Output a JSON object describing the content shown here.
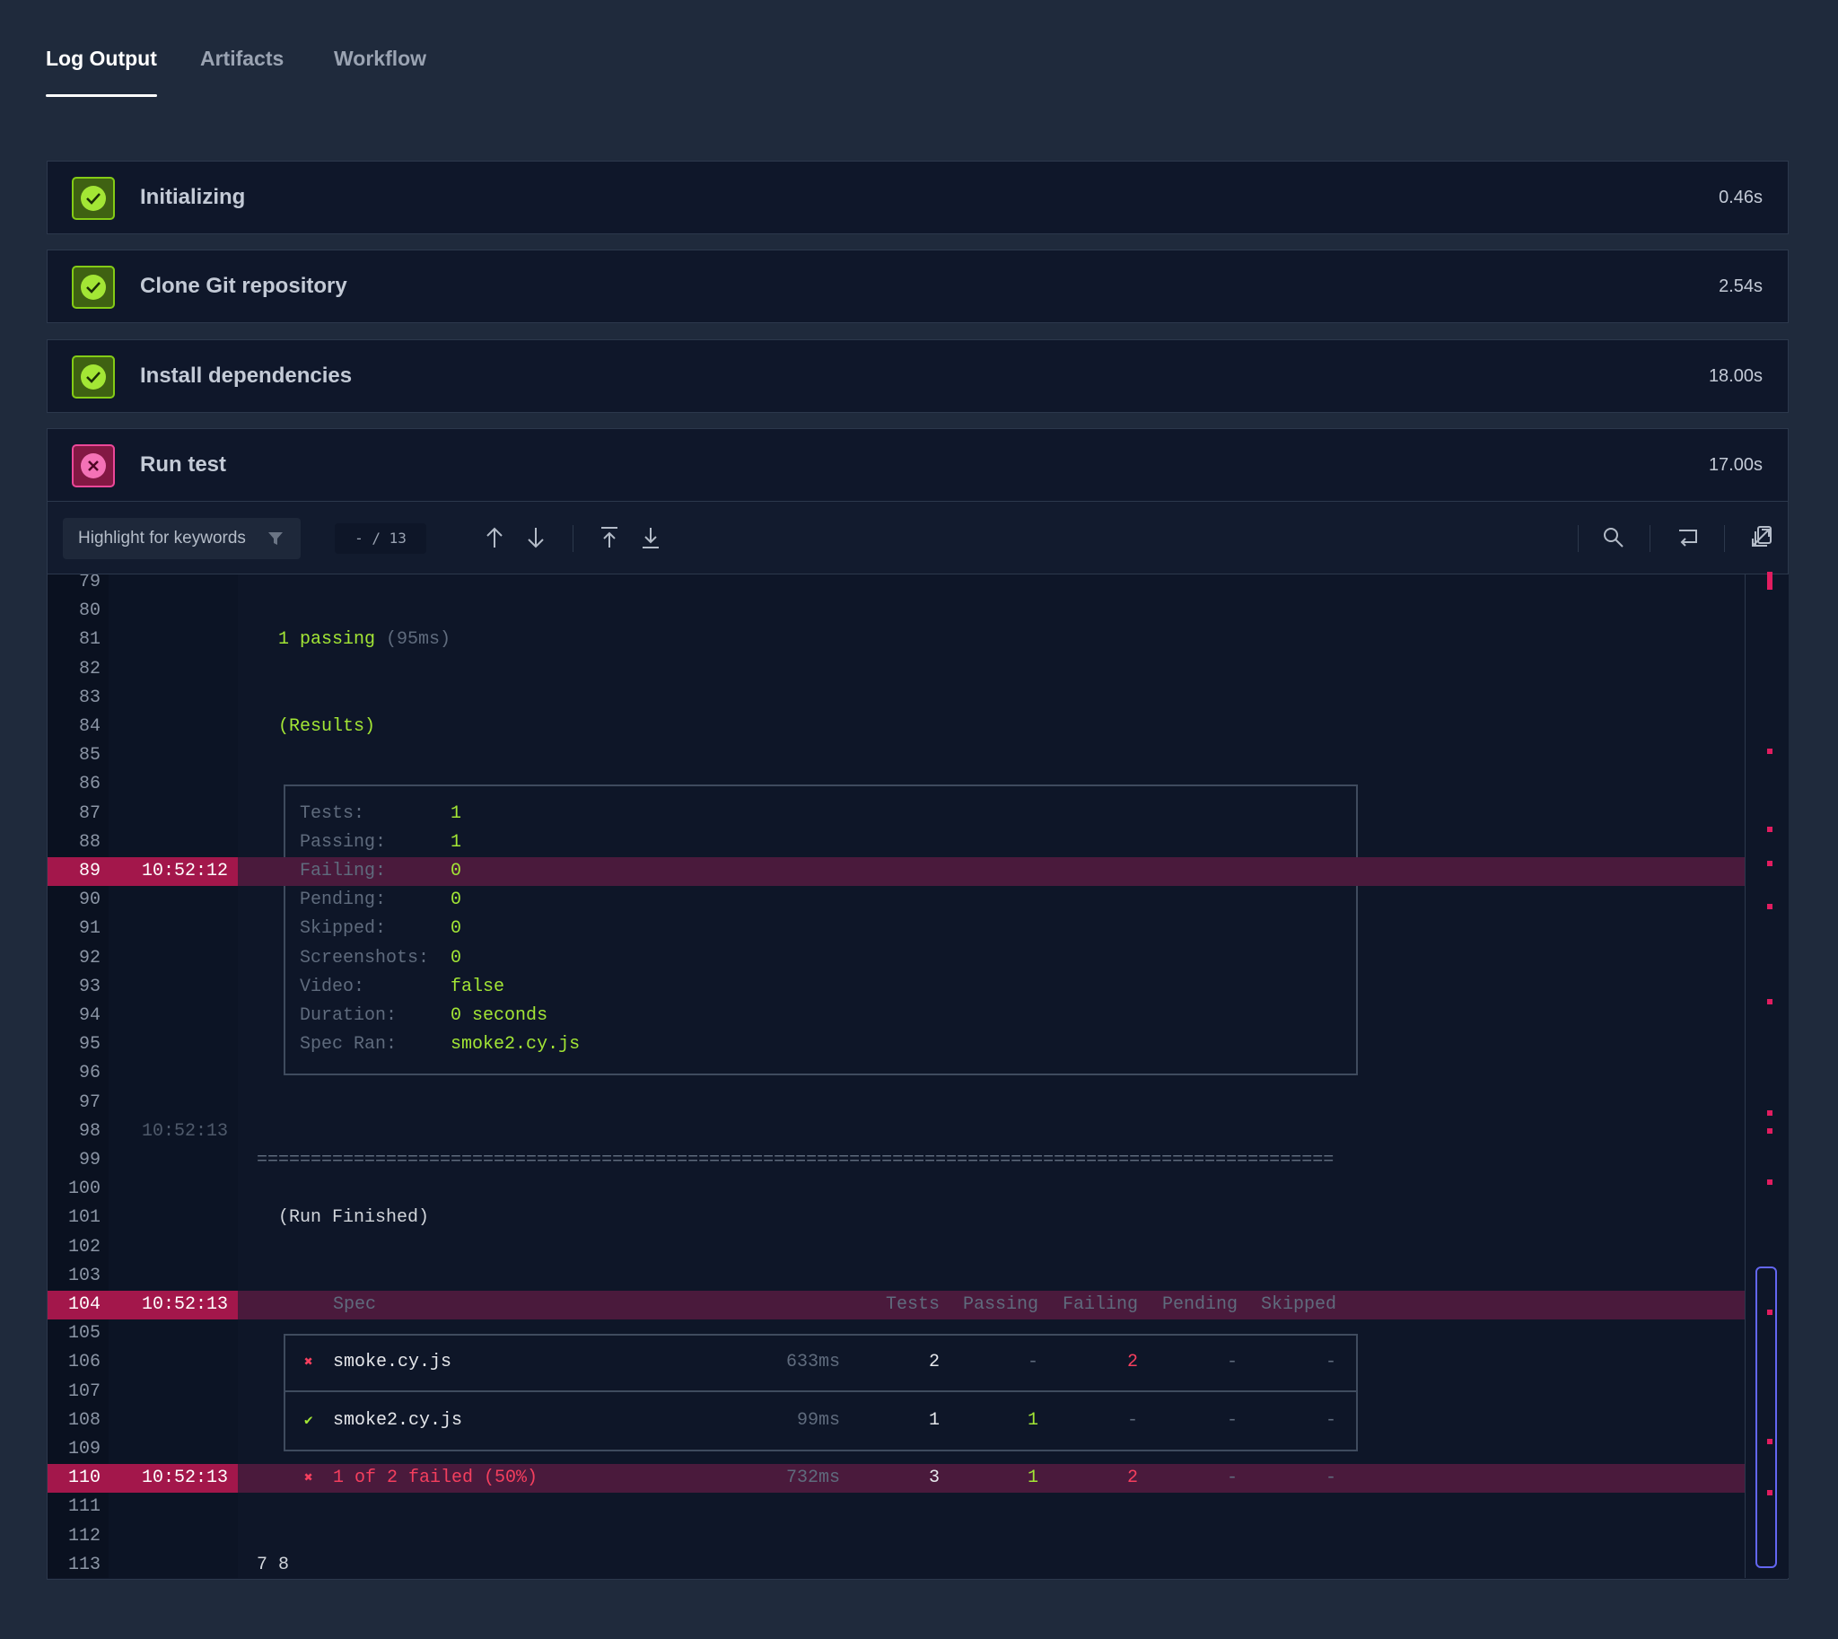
{
  "tabs": [
    "Log Output",
    "Artifacts",
    "Workflow"
  ],
  "active_tab": 0,
  "steps": [
    {
      "name": "Initializing",
      "duration": "0.46s",
      "status": "success"
    },
    {
      "name": "Clone Git repository",
      "duration": "2.54s",
      "status": "success"
    },
    {
      "name": "Install dependencies",
      "duration": "18.00s",
      "status": "success"
    },
    {
      "name": "Run test",
      "duration": "17.00s",
      "status": "failure"
    }
  ],
  "log": {
    "keyword_filter": "Highlight for keywords",
    "match_counter": "- / 13",
    "lines": [
      {
        "number": 79
      },
      {
        "number": 80
      },
      {
        "number": 81,
        "parts": [
          {
            "text": "  1 passing",
            "color": "#a3e635"
          },
          {
            "text": " (95ms)",
            "color": "#5f6b7d"
          }
        ]
      },
      {
        "number": 82
      },
      {
        "number": 83
      },
      {
        "number": 84,
        "parts": [
          {
            "text": "  (Results)",
            "color": "#a3e635"
          }
        ]
      },
      {
        "number": 85
      },
      {
        "number": 86
      },
      {
        "number": 87,
        "parts": [
          {
            "text": "    Tests:        ",
            "color": "#5f6b7d"
          },
          {
            "text": "1",
            "color": "#a3e635"
          }
        ]
      },
      {
        "number": 88,
        "parts": [
          {
            "text": "    Passing:      ",
            "color": "#5f6b7d"
          },
          {
            "text": "1",
            "color": "#a3e635"
          }
        ]
      },
      {
        "number": 89,
        "time": "10:52:12",
        "highlight": true,
        "parts": [
          {
            "text": "    Failing:      ",
            "color": "#5f6b7d"
          },
          {
            "text": "0",
            "color": "#a3e635"
          }
        ]
      },
      {
        "number": 90,
        "parts": [
          {
            "text": "    Pending:      ",
            "color": "#5f6b7d"
          },
          {
            "text": "0",
            "color": "#a3e635"
          }
        ]
      },
      {
        "number": 91,
        "parts": [
          {
            "text": "    Skipped:      ",
            "color": "#5f6b7d"
          },
          {
            "text": "0",
            "color": "#a3e635"
          }
        ]
      },
      {
        "number": 92,
        "parts": [
          {
            "text": "    Screenshots:  ",
            "color": "#5f6b7d"
          },
          {
            "text": "0",
            "color": "#a3e635"
          }
        ]
      },
      {
        "number": 93,
        "parts": [
          {
            "text": "    Video:        ",
            "color": "#5f6b7d"
          },
          {
            "text": "false",
            "color": "#a3e635"
          }
        ]
      },
      {
        "number": 94,
        "parts": [
          {
            "text": "    Duration:     ",
            "color": "#5f6b7d"
          },
          {
            "text": "0 seconds",
            "color": "#a3e635"
          }
        ]
      },
      {
        "number": 95,
        "parts": [
          {
            "text": "    Spec Ran:     ",
            "color": "#5f6b7d"
          },
          {
            "text": "smoke2.cy.js",
            "color": "#a3e635"
          }
        ]
      },
      {
        "number": 96
      },
      {
        "number": 97
      },
      {
        "number": 98,
        "time": "10:52:13"
      },
      {
        "number": 99,
        "parts": [
          {
            "text": "====================================================================================================",
            "color": "#5f6b7d"
          }
        ]
      },
      {
        "number": 100
      },
      {
        "number": 101,
        "parts": [
          {
            "text": "  (Run Finished)",
            "color": "#d1d5db"
          }
        ]
      },
      {
        "number": 102
      },
      {
        "number": 103
      },
      {
        "number": 104,
        "time": "10:52:13",
        "highlight": true,
        "header": [
          "Spec",
          "Tests",
          "Passing",
          "Failing",
          "Pending",
          "Skipped"
        ]
      },
      {
        "number": 105
      },
      {
        "number": 106,
        "row": {
          "icon": "✖",
          "status": "failure",
          "spec": "smoke.cy.js",
          "duration": "633ms",
          "tests": 2,
          "passing": "-",
          "failing": 2,
          "pending": "-",
          "skipped": "-"
        }
      },
      {
        "number": 107
      },
      {
        "number": 108,
        "row": {
          "icon": "✔",
          "status": "success",
          "spec": "smoke2.cy.js",
          "duration": "99ms",
          "tests": 1,
          "passing": 1,
          "failing": "-",
          "pending": "-",
          "skipped": "-"
        }
      },
      {
        "number": 109
      },
      {
        "number": 110,
        "time": "10:52:13",
        "highlight": true,
        "row": {
          "icon": "✖",
          "status": "failure",
          "summary": true,
          "spec": "1 of 2 failed (50%)",
          "duration": "732ms",
          "tests": 3,
          "passing": 1,
          "failing": 2,
          "pending": "-",
          "skipped": "-"
        }
      },
      {
        "number": 111
      },
      {
        "number": 112
      },
      {
        "number": 113,
        "parts": [
          {
            "text": "7 8",
            "color": "#d1d5db"
          }
        ]
      }
    ]
  }
}
